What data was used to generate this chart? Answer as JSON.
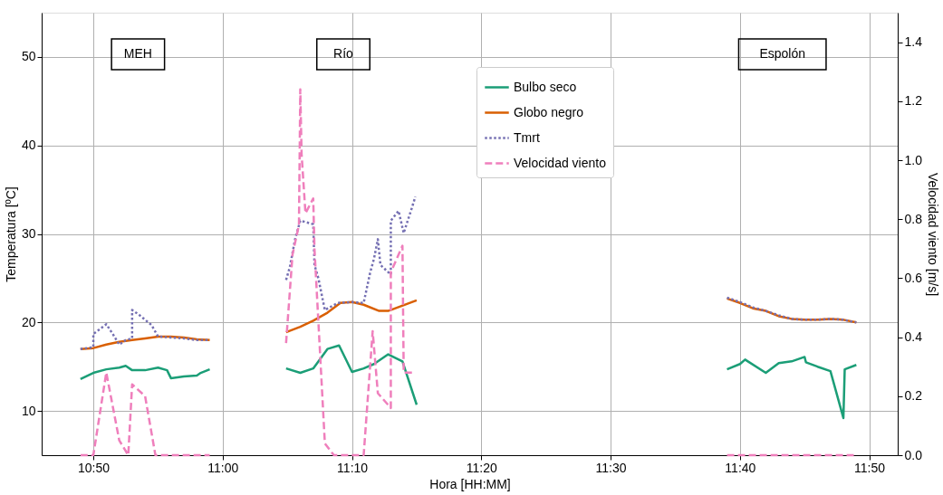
{
  "chart_data": {
    "type": "line",
    "xlabel": "Hora [HH:MM]",
    "ylabel": "Temperatura [ºC]",
    "y2label": "Velocidad viento [m/s]",
    "xlim": [
      10.7667,
      11.87
    ],
    "ylim": [
      5,
      55
    ],
    "y2lim": [
      0,
      1.5
    ],
    "xticks": [
      {
        "value": 10.8333,
        "label": "10:50"
      },
      {
        "value": 11.0,
        "label": "11:00"
      },
      {
        "value": 11.1667,
        "label": "11:10"
      },
      {
        "value": 11.3333,
        "label": "11:20"
      },
      {
        "value": 11.5,
        "label": "11:30"
      },
      {
        "value": 11.6667,
        "label": "11:40"
      },
      {
        "value": 11.8333,
        "label": "11:50"
      }
    ],
    "yticks": [
      10,
      20,
      30,
      40,
      50
    ],
    "y2ticks": [
      {
        "value": 0,
        "label": "0.0"
      },
      {
        "value": 0.2,
        "label": "0.2"
      },
      {
        "value": 0.4,
        "label": "0.4"
      },
      {
        "value": 0.6,
        "label": "0.6"
      },
      {
        "value": 0.8,
        "label": "0.8"
      },
      {
        "value": 1.0,
        "label": "1.0"
      },
      {
        "value": 1.2,
        "label": "1.2"
      },
      {
        "value": 1.4,
        "label": "1.4"
      }
    ],
    "grid": true,
    "legend": "top right",
    "marker": "none",
    "annotations": [
      "MEH",
      "Río",
      "Espolón"
    ],
    "series": [
      {
        "name": "Bulbo seco",
        "color": "#1b9e77",
        "line_style": "solid",
        "x": [
          10.8167,
          10.8333,
          10.85,
          10.8667,
          10.875,
          10.8833,
          10.9,
          10.9167,
          10.9283,
          10.9333,
          10.95,
          10.9667,
          10.9717,
          10.9833,
          11.0,
          11.0817,
          11.1,
          11.1167,
          11.135,
          11.15,
          11.1667,
          11.1817,
          11.195,
          11.2133,
          11.2317,
          11.25,
          11.45,
          11.65,
          11.6667,
          11.6733,
          11.7,
          11.7167,
          11.7333,
          11.75,
          11.7517,
          11.7667,
          11.7833,
          11.8,
          11.8017,
          11.8167
        ],
        "values": [
          13.6,
          14.3,
          14.7,
          14.9,
          15.1,
          14.6,
          14.6,
          14.9,
          14.6,
          13.7,
          13.9,
          14.0,
          14.3,
          14.7,
          null,
          14.8,
          14.3,
          14.8,
          17.0,
          17.4,
          14.4,
          14.8,
          15.3,
          16.4,
          15.6,
          10.7,
          null,
          14.7,
          15.3,
          15.8,
          14.3,
          15.4,
          15.6,
          16.1,
          15.5,
          15.0,
          14.5,
          9.2,
          14.7,
          15.2
        ]
      },
      {
        "name": "Globo negro",
        "color": "#d95f02",
        "line_style": "solid",
        "x": [
          10.8167,
          10.8333,
          10.85,
          10.8667,
          10.8833,
          10.9,
          10.9167,
          10.9333,
          10.95,
          10.9667,
          10.9833,
          11.0,
          11.0817,
          11.1,
          11.1167,
          11.135,
          11.1517,
          11.1667,
          11.1817,
          11.2017,
          11.2133,
          11.25,
          11.45,
          11.65,
          11.6667,
          11.6833,
          11.7,
          11.7167,
          11.7333,
          11.75,
          11.7667,
          11.7833,
          11.8,
          11.8167
        ],
        "values": [
          17.0,
          17.1,
          17.5,
          17.8,
          18.0,
          18.2,
          18.4,
          18.4,
          18.3,
          18.1,
          18.0,
          null,
          18.9,
          19.5,
          20.2,
          21.1,
          22.2,
          22.3,
          22.0,
          21.3,
          21.3,
          22.5,
          null,
          22.7,
          22.2,
          21.6,
          21.3,
          20.7,
          20.4,
          20.3,
          20.3,
          20.4,
          20.3,
          20.0
        ]
      },
      {
        "name": "Tmrt",
        "color": "#7570b3",
        "line_style": "dotted",
        "x": [
          10.8167,
          10.8333,
          10.8333,
          10.85,
          10.8583,
          10.8667,
          10.875,
          10.8833,
          10.8833,
          10.8917,
          10.9083,
          10.9167,
          10.9333,
          10.95,
          10.9667,
          10.9833,
          11.0,
          11.0817,
          11.0867,
          11.0933,
          11.1,
          11.1167,
          11.1183,
          11.1233,
          11.1317,
          11.1483,
          11.1667,
          11.1817,
          11.19,
          11.195,
          11.2,
          11.2033,
          11.2167,
          11.2167,
          11.2267,
          11.2333,
          11.2433,
          11.2483,
          11.45,
          11.65,
          11.6667,
          11.6833,
          11.7,
          11.7167,
          11.7333,
          11.75,
          11.7667,
          11.7833,
          11.8,
          11.8167
        ],
        "values": [
          17.0,
          17.2,
          18.7,
          19.8,
          18.7,
          17.5,
          18.0,
          18.2,
          21.4,
          20.9,
          19.7,
          18.4,
          18.3,
          18.2,
          18.0,
          18.0,
          null,
          24.8,
          26.3,
          29.4,
          31.5,
          31.1,
          26.5,
          25.0,
          21.4,
          22.2,
          22.3,
          22.2,
          25.6,
          27.2,
          29.4,
          26.5,
          25.4,
          31.5,
          32.6,
          30.1,
          32.8,
          34.2,
          null,
          22.8,
          22.3,
          21.7,
          21.3,
          20.8,
          20.4,
          20.3,
          20.3,
          20.4,
          20.3,
          20.0
        ]
      },
      {
        "name": "Velocidad viento",
        "color": "#ef7fbc",
        "line_style": "dashed",
        "axis": "y2",
        "x": [
          10.8167,
          10.8333,
          10.85,
          10.8667,
          10.8783,
          10.8833,
          10.9,
          10.9133,
          10.9833,
          11.0,
          11.0817,
          11.09,
          11.0983,
          11.1,
          11.1017,
          11.1067,
          11.1167,
          11.1183,
          11.1317,
          11.1433,
          11.1817,
          11.1933,
          11.2,
          11.2167,
          11.2167,
          11.2317,
          11.2333,
          11.2467,
          11.45,
          11.65,
          11.8167
        ],
        "values": [
          0,
          0,
          0.28,
          0.05,
          0,
          0.24,
          0.2,
          0,
          0,
          null,
          0.38,
          0.68,
          0.78,
          1.24,
          1.02,
          0.82,
          0.87,
          0.7,
          0.04,
          0,
          0,
          0.42,
          0.21,
          0.16,
          0.62,
          0.71,
          0.28,
          0.28,
          null,
          0,
          0
        ]
      }
    ]
  }
}
